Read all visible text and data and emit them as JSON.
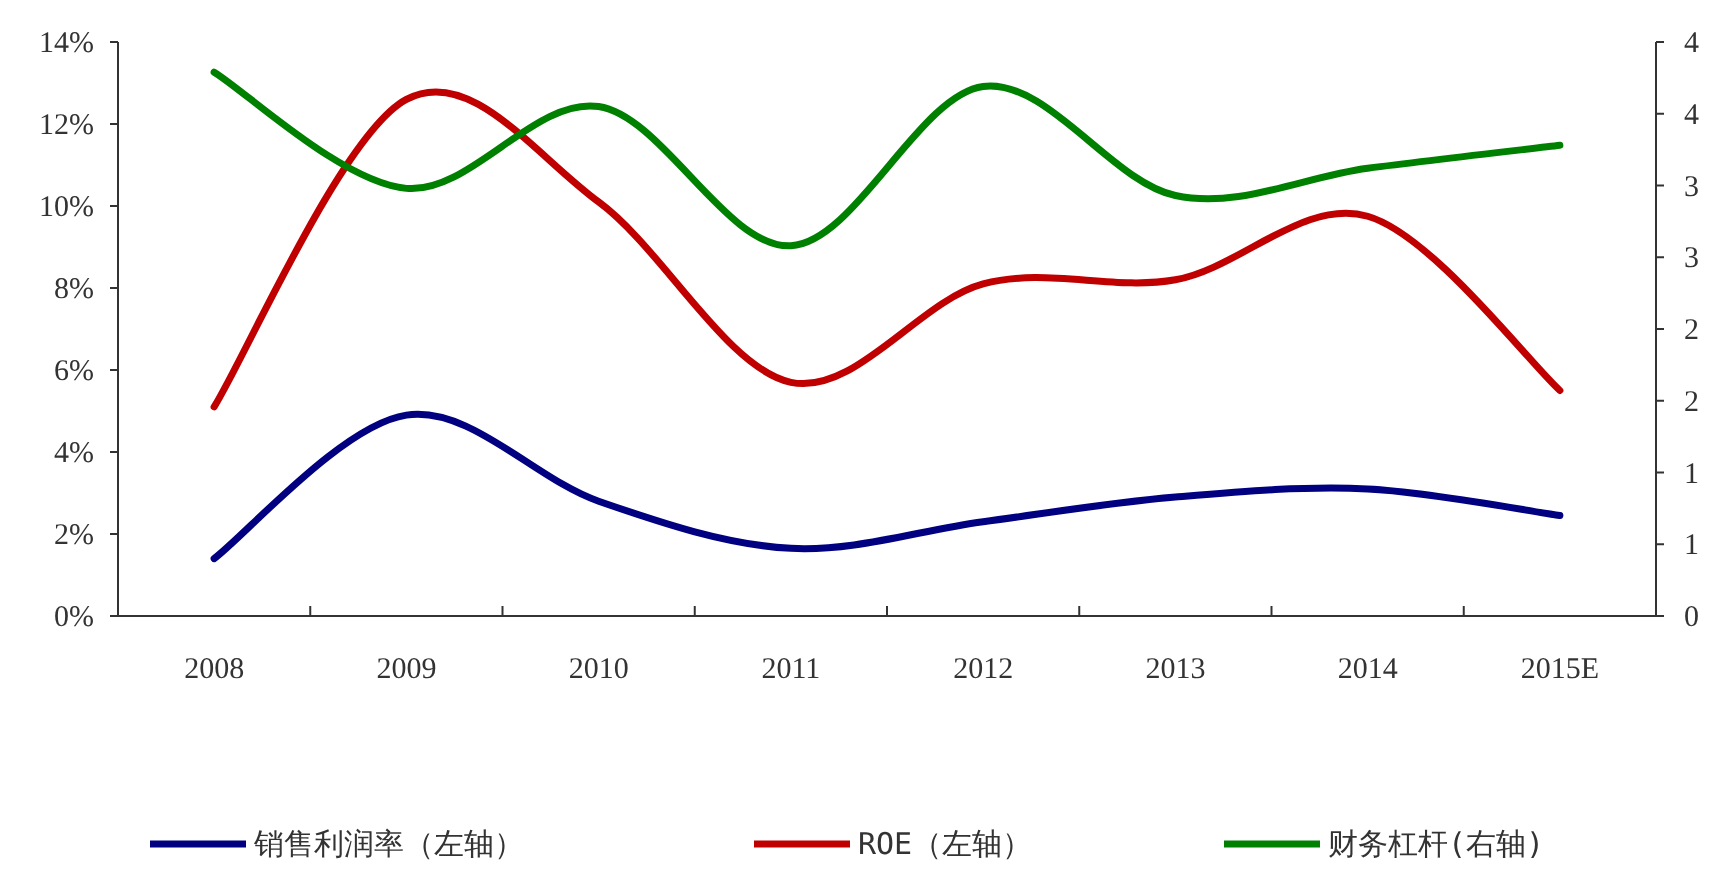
{
  "chart_data": {
    "type": "line",
    "categories": [
      "2008",
      "2009",
      "2010",
      "2011",
      "2012",
      "2013",
      "2014",
      "2015E"
    ],
    "series": [
      {
        "name": "销售利润率（左轴）",
        "color": "#000080",
        "values": [
          1.4,
          4.9,
          2.8,
          1.65,
          2.3,
          2.9,
          3.1,
          2.45
        ]
      },
      {
        "name": "ROE（左轴）",
        "color": "#c00000",
        "values": [
          5.1,
          12.6,
          10.1,
          5.7,
          8.1,
          8.2,
          9.75,
          5.5
        ]
      },
      {
        "name": "财务杠杆(右轴)",
        "color": "#008000",
        "axis": "y2",
        "values": [
          3.79,
          2.98,
          3.55,
          2.58,
          3.69,
          2.93,
          3.12,
          3.28
        ]
      }
    ],
    "ylim": [
      0,
      14
    ],
    "yticks": [
      {
        "value": 0,
        "label": "0%"
      },
      {
        "value": 2,
        "label": "2%"
      },
      {
        "value": 4,
        "label": "4%"
      },
      {
        "value": 6,
        "label": "6%"
      },
      {
        "value": 8,
        "label": "8%"
      },
      {
        "value": 10,
        "label": "10%"
      },
      {
        "value": 12,
        "label": "12%"
      },
      {
        "value": 14,
        "label": "14%"
      }
    ],
    "y2lim": [
      0,
      4
    ],
    "y2ticks": [
      {
        "value": 0,
        "label": "0"
      },
      {
        "value": 0.5,
        "label": "1"
      },
      {
        "value": 1,
        "label": "1"
      },
      {
        "value": 1.5,
        "label": "2"
      },
      {
        "value": 2,
        "label": "2"
      },
      {
        "value": 2.5,
        "label": "3"
      },
      {
        "value": 3,
        "label": "3"
      },
      {
        "value": 3.5,
        "label": "4"
      },
      {
        "value": 4,
        "label": "4"
      }
    ],
    "grid": false,
    "legend": "bottom",
    "marker": "none",
    "line_style": "solid"
  }
}
